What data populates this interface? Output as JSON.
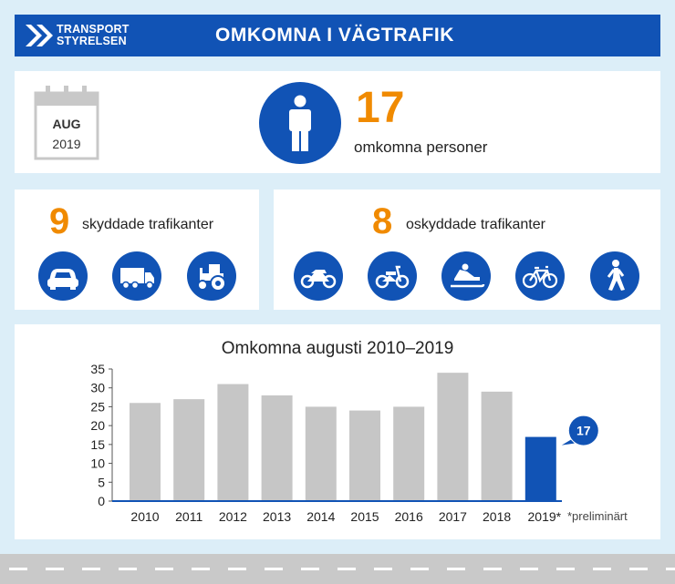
{
  "header": {
    "logo_line1": "TRANSPORT",
    "logo_line2": "STYRELSEN",
    "title": "OMKOMNA I VÄGTRAFIK"
  },
  "summary": {
    "month": "AUG",
    "year": "2019",
    "total": "17",
    "total_label": "omkomna personer"
  },
  "protected": {
    "count": "9",
    "label": "skyddade trafikanter",
    "icons": [
      "car-icon",
      "truck-icon",
      "tractor-icon"
    ]
  },
  "unprotected": {
    "count": "8",
    "label": "oskyddade trafikanter",
    "icons": [
      "motorcycle-icon",
      "moped-icon",
      "snowmobile-icon",
      "bicycle-icon",
      "pedestrian-icon"
    ]
  },
  "colors": {
    "brand_blue": "#1153b5",
    "accent_orange": "#f08a00",
    "bar_gray": "#c6c6c6"
  },
  "chart_data": {
    "type": "bar",
    "title": "Omkomna augusti 2010–2019",
    "categories": [
      "2010",
      "2011",
      "2012",
      "2013",
      "2014",
      "2015",
      "2016",
      "2017",
      "2018",
      "2019*"
    ],
    "values": [
      26,
      27,
      31,
      28,
      25,
      24,
      25,
      34,
      29,
      17
    ],
    "highlight_index": 9,
    "highlight_label": "17",
    "ylim": [
      0,
      35
    ],
    "yticks": [
      0,
      5,
      10,
      15,
      20,
      25,
      30,
      35
    ],
    "footnote": "*preliminärt",
    "xlabel": "",
    "ylabel": "",
    "grid": false
  }
}
